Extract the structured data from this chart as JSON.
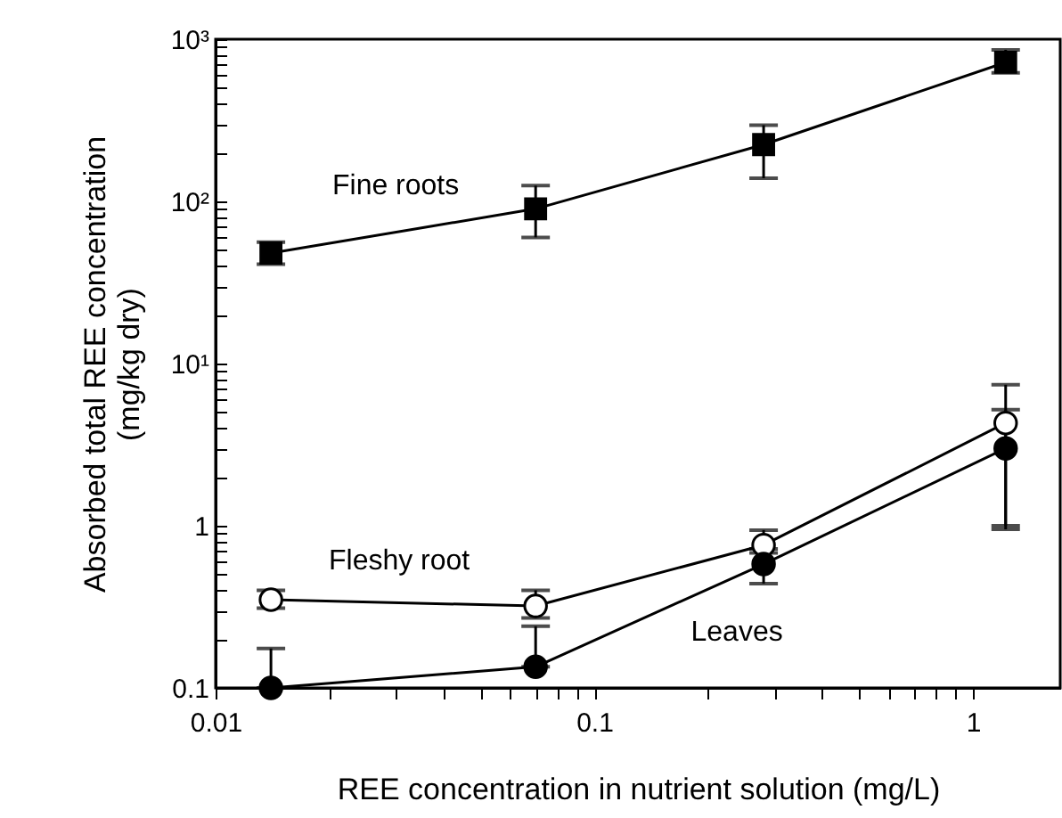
{
  "chart_data": {
    "type": "line",
    "xlabel": "REE concentration in nutrient solution (mg/L)",
    "ylabel": "Absorbed total REE concentration\n(mg/kg dry)",
    "log": "xy",
    "grid": false,
    "line_style": "solid",
    "x": [
      0.014,
      0.07,
      0.28,
      1.22
    ],
    "xlim": [
      0.01,
      1.7
    ],
    "xticks": [
      0.01,
      {
        "value": 0.02,
        "label": null
      },
      {
        "value": 0.03,
        "label": null
      },
      {
        "value": 0.04,
        "label": null
      },
      {
        "value": 0.05,
        "label": null
      },
      {
        "value": 0.06,
        "label": null
      },
      {
        "value": 0.07,
        "label": null
      },
      {
        "value": 0.08,
        "label": null
      },
      {
        "value": 0.09,
        "label": null
      },
      0.1,
      {
        "value": 0.2,
        "label": null
      },
      {
        "value": 0.3,
        "label": null
      },
      {
        "value": 0.4,
        "label": null
      },
      {
        "value": 0.5,
        "label": null
      },
      {
        "value": 0.6,
        "label": null
      },
      {
        "value": 0.7,
        "label": null
      },
      {
        "value": 0.8,
        "label": null
      },
      {
        "value": 0.9,
        "label": null
      },
      1
    ],
    "ylim": [
      0.1,
      1000
    ],
    "yticks": [
      0.1,
      {
        "value": 0.2,
        "label": null
      },
      {
        "value": 0.3,
        "label": null
      },
      {
        "value": 0.4,
        "label": null
      },
      {
        "value": 0.5,
        "label": null
      },
      {
        "value": 0.6,
        "label": null
      },
      {
        "value": 0.7,
        "label": null
      },
      {
        "value": 0.8,
        "label": null
      },
      {
        "value": 0.9,
        "label": null
      },
      1,
      {
        "value": 2,
        "label": null
      },
      {
        "value": 3,
        "label": null
      },
      {
        "value": 4,
        "label": null
      },
      {
        "value": 5,
        "label": null
      },
      {
        "value": 6,
        "label": null
      },
      {
        "value": 7,
        "label": null
      },
      {
        "value": 8,
        "label": null
      },
      {
        "value": 9,
        "label": null
      },
      {
        "value": 10,
        "label": "10¹"
      },
      {
        "value": 20,
        "label": null
      },
      {
        "value": 30,
        "label": null
      },
      {
        "value": 40,
        "label": null
      },
      {
        "value": 50,
        "label": null
      },
      {
        "value": 60,
        "label": null
      },
      {
        "value": 70,
        "label": null
      },
      {
        "value": 80,
        "label": null
      },
      {
        "value": 90,
        "label": null
      },
      {
        "value": 100,
        "label": "10²"
      },
      {
        "value": 200,
        "label": null
      },
      {
        "value": 300,
        "label": null
      },
      {
        "value": 400,
        "label": null
      },
      {
        "value": 500,
        "label": null
      },
      {
        "value": 600,
        "label": null
      },
      {
        "value": 700,
        "label": null
      },
      {
        "value": 800,
        "label": null
      },
      {
        "value": 900,
        "label": null
      },
      {
        "value": 1000,
        "label": "10³"
      }
    ],
    "series": [
      {
        "name": "Fine roots",
        "color": "#000000",
        "marker": "square",
        "values": [
          48,
          90,
          224,
          720
        ],
        "errors": [
          [
            41,
            56
          ],
          [
            60,
            125
          ],
          [
            139,
            295
          ],
          [
            620,
            860
          ]
        ]
      },
      {
        "name": "Fleshy root",
        "color": "#ffffff",
        "marker": "circle",
        "values": [
          0.35,
          0.32,
          0.76,
          4.3
        ],
        "errors": [
          [
            0.31,
            0.4
          ],
          [
            0.27,
            0.4
          ],
          [
            0.68,
            0.94
          ],
          [
            1.0,
            7.4
          ]
        ]
      },
      {
        "name": "Leaves",
        "color": "#000000",
        "marker": "circle",
        "values": [
          0.1,
          0.135,
          0.58,
          3.0
        ],
        "errors": [
          [
            0.1,
            0.175
          ],
          [
            0.135,
            0.24
          ],
          [
            0.44,
            0.72
          ],
          [
            0.95,
            5.2
          ]
        ]
      }
    ]
  }
}
